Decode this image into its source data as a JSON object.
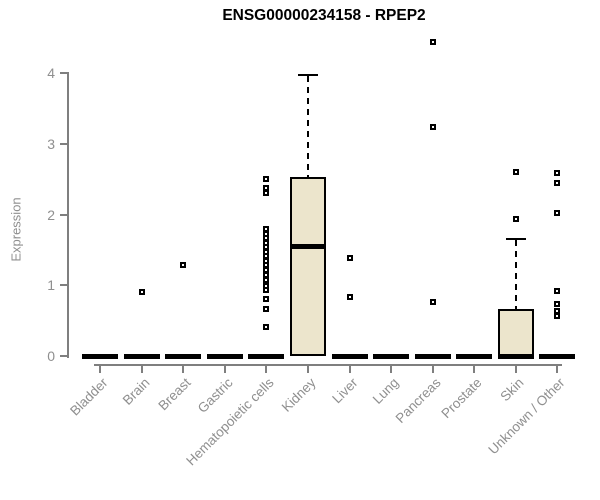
{
  "chart_data": {
    "type": "boxplot",
    "title": "ENSG00000234158 - RPEP2",
    "ylabel": "Expression",
    "xlabel": "",
    "ylim": [
      0,
      4
    ],
    "yticks": [
      0,
      1,
      2,
      3,
      4
    ],
    "grid": false,
    "x_label_rotation": 45,
    "categories": [
      "Bladder",
      "Brain",
      "Breast",
      "Gastric",
      "Hematopoietic cells",
      "Kidney",
      "Liver",
      "Lung",
      "Pancreas",
      "Prostate",
      "Skin",
      "Unknown / Other"
    ],
    "series": [
      {
        "label": "Bladder",
        "q1": 0,
        "median": 0,
        "q3": 0,
        "whisker_low": 0,
        "whisker_high": 0,
        "outliers": []
      },
      {
        "label": "Brain",
        "q1": 0,
        "median": 0,
        "q3": 0,
        "whisker_low": 0,
        "whisker_high": 0,
        "outliers": [
          0.9
        ]
      },
      {
        "label": "Breast",
        "q1": 0,
        "median": 0,
        "q3": 0,
        "whisker_low": 0,
        "whisker_high": 0,
        "outliers": [
          1.29
        ]
      },
      {
        "label": "Gastric",
        "q1": 0,
        "median": 0,
        "q3": 0,
        "whisker_low": 0,
        "whisker_high": 0,
        "outliers": []
      },
      {
        "label": "Hematopoietic cells",
        "q1": 0,
        "median": 0,
        "q3": 0,
        "whisker_low": 0,
        "whisker_high": 0,
        "outliers": [
          2.5,
          2.37,
          2.3,
          1.79,
          1.73,
          1.67,
          1.6,
          1.54,
          1.47,
          1.41,
          1.34,
          1.28,
          1.21,
          1.14,
          1.08,
          0.99,
          0.93,
          0.81,
          0.67,
          0.41
        ]
      },
      {
        "label": "Kidney",
        "q1": 0,
        "median": 1.55,
        "q3": 2.53,
        "whisker_low": 0,
        "whisker_high": 3.97,
        "outliers": []
      },
      {
        "label": "Liver",
        "q1": 0,
        "median": 0,
        "q3": 0,
        "whisker_low": 0,
        "whisker_high": 0,
        "outliers": [
          1.38,
          0.83
        ]
      },
      {
        "label": "Lung",
        "q1": 0,
        "median": 0,
        "q3": 0,
        "whisker_low": 0,
        "whisker_high": 0,
        "outliers": []
      },
      {
        "label": "Pancreas",
        "q1": 0,
        "median": 0,
        "q3": 0,
        "whisker_low": 0,
        "whisker_high": 0,
        "outliers": [
          4.44,
          3.24,
          0.76
        ]
      },
      {
        "label": "Prostate",
        "q1": 0,
        "median": 0,
        "q3": 0,
        "whisker_low": 0,
        "whisker_high": 0,
        "outliers": []
      },
      {
        "label": "Skin",
        "q1": 0,
        "median": 0,
        "q3": 0.66,
        "whisker_low": 0,
        "whisker_high": 1.65,
        "outliers": [
          2.6,
          1.94
        ]
      },
      {
        "label": "Unknown / Other",
        "q1": 0,
        "median": 0,
        "q3": 0,
        "whisker_low": 0,
        "whisker_high": 0,
        "outliers": [
          2.59,
          2.44,
          2.02,
          0.92,
          0.73,
          0.63,
          0.57
        ]
      }
    ],
    "colors": {
      "box_fill": "#ece5cc",
      "box_stroke": "#000000",
      "axis": "#7f7f7f",
      "tick_label": "#8f8f8f",
      "background": "#ffffff"
    }
  }
}
